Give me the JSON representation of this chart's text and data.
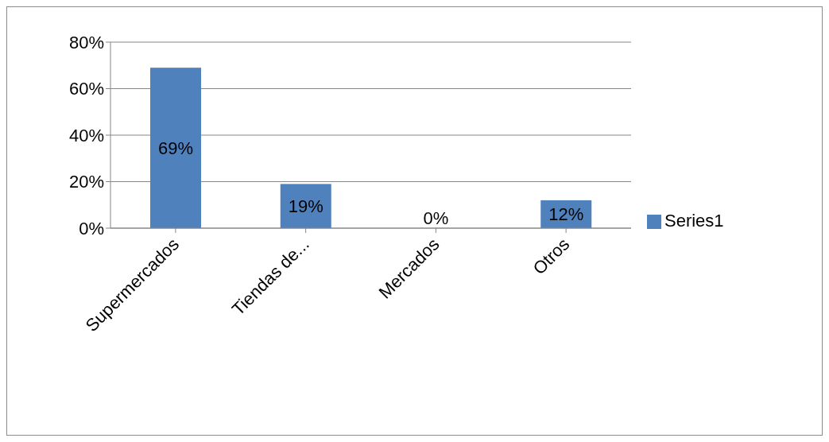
{
  "chart_data": {
    "type": "bar",
    "categories": [
      "Supermercados",
      "Tiendas de...",
      "Mercados",
      "Otros"
    ],
    "series": [
      {
        "name": "Series1",
        "color": "#4f81bd",
        "values": [
          69,
          19,
          0,
          12
        ],
        "value_labels": [
          "69%",
          "19%",
          "0%",
          "12%"
        ]
      }
    ],
    "ylim": [
      0,
      80
    ],
    "yticks": [
      {
        "value": 0,
        "label": "0%"
      },
      {
        "value": 20,
        "label": "20%"
      },
      {
        "value": 40,
        "label": "40%"
      },
      {
        "value": 60,
        "label": "60%"
      },
      {
        "value": 80,
        "label": "80%"
      }
    ],
    "grid": "y",
    "legend": "right"
  }
}
